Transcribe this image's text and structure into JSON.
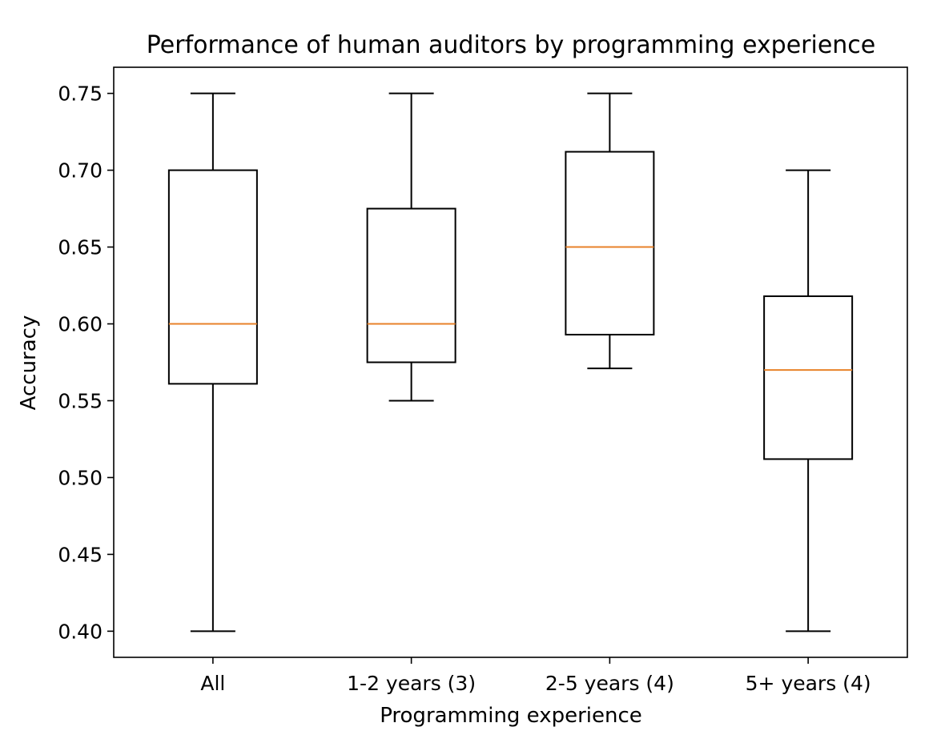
{
  "chart_data": {
    "type": "box",
    "title": "Performance of human auditors by programming experience",
    "xlabel": "Programming experience",
    "ylabel": "Accuracy",
    "ylim": [
      0.383,
      0.767
    ],
    "yticks": [
      0.4,
      0.45,
      0.5,
      0.55,
      0.6,
      0.65,
      0.7,
      0.75
    ],
    "ytick_labels": [
      "0.40",
      "0.45",
      "0.50",
      "0.55",
      "0.60",
      "0.65",
      "0.70",
      "0.75"
    ],
    "categories": [
      "All",
      "1-2 years (3)",
      "2-5 years (4)",
      "5+ years (4)"
    ],
    "boxes": [
      {
        "label": "All",
        "whisker_low": 0.4,
        "q1": 0.561,
        "median": 0.6,
        "q3": 0.7,
        "whisker_high": 0.75
      },
      {
        "label": "1-2 years (3)",
        "whisker_low": 0.55,
        "q1": 0.575,
        "median": 0.6,
        "q3": 0.675,
        "whisker_high": 0.75
      },
      {
        "label": "2-5 years (4)",
        "whisker_low": 0.571,
        "q1": 0.593,
        "median": 0.65,
        "q3": 0.712,
        "whisker_high": 0.75
      },
      {
        "label": "5+ years (4)",
        "whisker_low": 0.4,
        "q1": 0.512,
        "median": 0.57,
        "q3": 0.618,
        "whisker_high": 0.7
      }
    ],
    "colors": {
      "box": "#000000",
      "median": "#e8822a",
      "axes": "#000000",
      "background": "#ffffff"
    },
    "grid": false
  }
}
